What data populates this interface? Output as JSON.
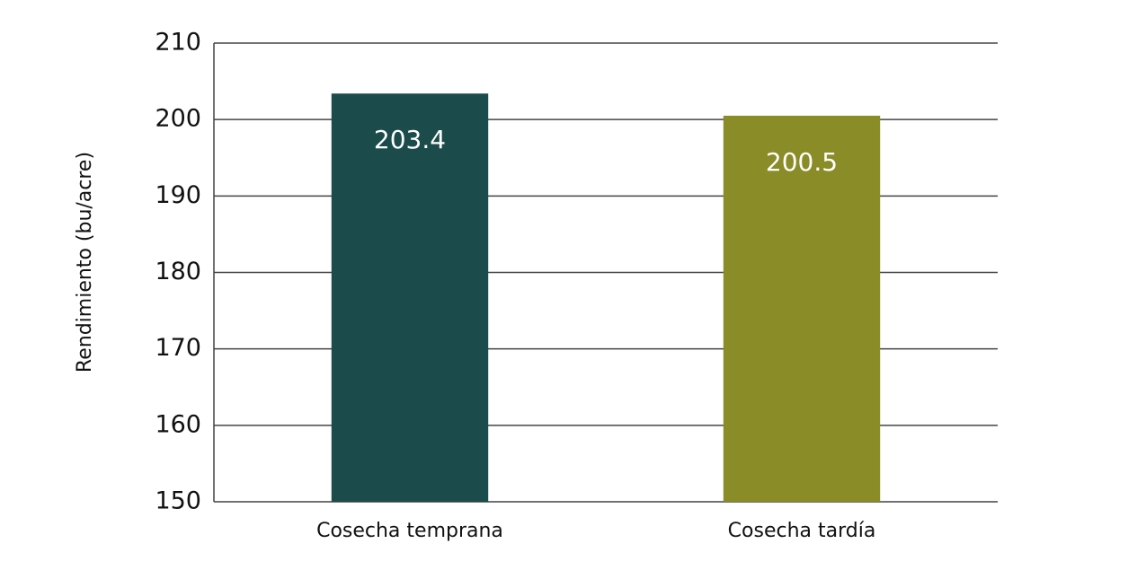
{
  "chart_data": {
    "type": "bar",
    "y_label": "Rendimiento (bu/acre)",
    "categories": [
      "Cosecha temprana",
      "Cosecha tardía"
    ],
    "values": [
      203.4,
      200.5
    ],
    "colors": [
      "#1b4b4b",
      "#8a8c27"
    ],
    "ylim": [
      150,
      210
    ],
    "yticks": [
      150,
      160,
      170,
      180,
      190,
      200,
      210
    ],
    "grid": true
  }
}
